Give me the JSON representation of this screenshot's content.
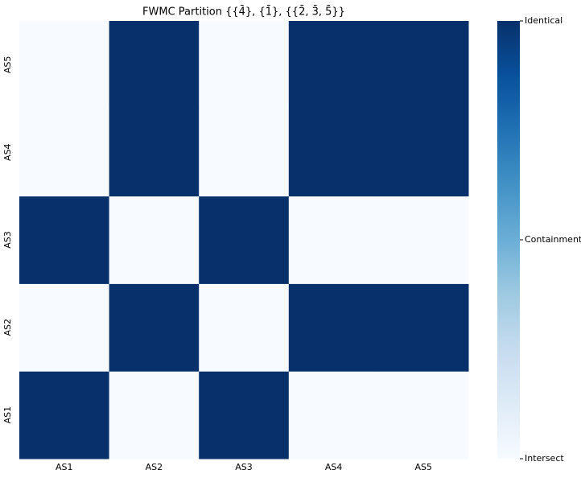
{
  "chart_data": {
    "type": "heatmap",
    "title": "FWMC Partition {{4̄}, {1̄}, {{2̄, 3̄, 5̄}}",
    "x_categories": [
      "AS1",
      "AS2",
      "AS3",
      "AS4",
      "AS5"
    ],
    "y_categories": [
      "AS1",
      "AS2",
      "AS3",
      "AS4",
      "AS5"
    ],
    "values": [
      [
        2,
        0,
        2,
        0,
        0
      ],
      [
        0,
        2,
        0,
        2,
        2
      ],
      [
        2,
        0,
        2,
        0,
        0
      ],
      [
        0,
        2,
        0,
        2,
        2
      ],
      [
        0,
        2,
        0,
        2,
        2
      ]
    ],
    "colorscale": [
      "#f7fbff",
      "#deebf7",
      "#c6dbef",
      "#9ecae1",
      "#6baed6",
      "#4292c6",
      "#2171b5",
      "#08519c",
      "#08306b"
    ],
    "colorbar": {
      "lim": [
        0,
        2
      ],
      "ticks": [
        {
          "value": 0,
          "label": "Intersect"
        },
        {
          "value": 1,
          "label": "Containment"
        },
        {
          "value": 2,
          "label": "Identical"
        }
      ]
    }
  }
}
